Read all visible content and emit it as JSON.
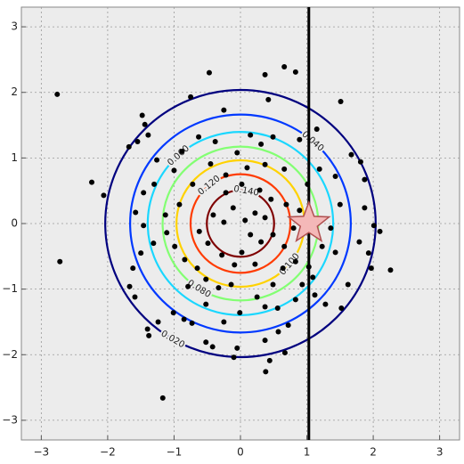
{
  "chart_data": {
    "type": "scatter",
    "x": [
      -2.76,
      -2.72,
      -2.24,
      -2.06,
      -1.17,
      2.26,
      1.51,
      -0.47,
      0.37,
      0.66,
      0.83,
      -0.75,
      -1.48,
      -1.44,
      -1.55,
      -1.68,
      -1.39,
      -0.25,
      0.42,
      0.89,
      1.15,
      1.67,
      1.81,
      1.87,
      1.87,
      2.01,
      2.1,
      1.79,
      1.93,
      1.97,
      1.62,
      1.52,
      1.28,
      1.09,
      1.12,
      0.93,
      1.03,
      0.83,
      0.64,
      0.49,
      0.25,
      0.37,
      0.72,
      0.57,
      0.37,
      0.67,
      0.44,
      0.38,
      -0.05,
      -0.1,
      -0.42,
      -0.52,
      -0.73,
      -0.85,
      -1.01,
      -1.24,
      -1.4,
      -1.38,
      -1.59,
      -1.67,
      -1.62,
      -1.5,
      -1.31,
      -1.46,
      -1.58,
      -1.46,
      -1.3,
      -1.26,
      -1.0,
      -0.88,
      -0.63,
      -0.38,
      -0.05,
      0.15,
      0.31,
      0.49,
      0.66,
      0.37,
      0.1,
      -0.22,
      -0.45,
      -0.72,
      -0.92,
      -1.13,
      -1.11,
      -0.99,
      -0.84,
      -0.65,
      -0.52,
      -0.33,
      -0.14,
      -0.09,
      -0.28,
      -0.49,
      -0.62,
      -0.41,
      -0.25,
      -0.11,
      0.07,
      0.22,
      0.37,
      0.46,
      0.29,
      0.02,
      -0.22,
      0.15,
      0.31,
      0.02,
      0.22,
      0.49,
      0.66,
      0.8,
      0.89,
      0.69,
      1.01,
      1.19,
      1.43,
      1.5,
      1.36,
      1.23,
      1.43,
      -0.79,
      -0.01,
      -0.25,
      -0.52,
      0.56,
      0.83
    ],
    "y": [
      1.97,
      -0.58,
      0.63,
      0.43,
      -2.66,
      -0.71,
      1.86,
      2.3,
      2.27,
      2.39,
      2.31,
      1.93,
      1.65,
      1.51,
      1.25,
      1.17,
      1.35,
      1.73,
      1.89,
      1.28,
      1.44,
      1.05,
      0.94,
      0.67,
      0.24,
      -0.03,
      -0.12,
      -0.28,
      -0.45,
      -0.68,
      -0.93,
      -1.29,
      -1.23,
      -0.82,
      -1.09,
      -0.93,
      -0.66,
      -0.58,
      -0.68,
      -0.93,
      -1.12,
      -1.27,
      -1.55,
      -1.65,
      -1.78,
      -1.97,
      -2.09,
      -2.26,
      -1.9,
      -2.04,
      -1.88,
      -1.81,
      -1.52,
      -1.46,
      -1.36,
      -1.5,
      -1.61,
      -1.71,
      -1.12,
      -0.96,
      -0.68,
      -0.45,
      -0.3,
      -0.03,
      0.17,
      0.47,
      0.6,
      0.97,
      0.81,
      1.1,
      1.32,
      1.25,
      1.08,
      1.35,
      1.21,
      1.32,
      0.83,
      0.9,
      0.85,
      0.74,
      0.91,
      0.6,
      0.29,
      0.13,
      -0.14,
      -0.35,
      -0.55,
      -0.68,
      -0.85,
      -0.98,
      -0.93,
      -0.63,
      -0.48,
      -0.3,
      -0.12,
      0.13,
      0.02,
      0.24,
      0.05,
      0.16,
      0.09,
      0.37,
      0.51,
      0.6,
      0.47,
      -0.17,
      -0.28,
      -0.44,
      -0.62,
      -0.17,
      -0.35,
      -0.07,
      0.2,
      0.29,
      0.6,
      0.83,
      0.72,
      0.29,
      -0.07,
      -0.35,
      -0.44,
      -0.96,
      -1.36,
      -1.5,
      -1.23,
      -1.29,
      -1.16
    ],
    "point_color": "#000000",
    "contours": {
      "levels": [
        0.02,
        0.04,
        0.06,
        0.08,
        0.1,
        0.12,
        0.14
      ],
      "value_labels": [
        "0.020",
        "0.040",
        "0.060",
        "0.080",
        "0.100",
        "0.120",
        "0.140"
      ],
      "colors": [
        "#00007f",
        "#0039ff",
        "#1ad7ff",
        "#83ff73",
        "#ffd200",
        "#ff3b00",
        "#7f0000"
      ]
    },
    "vline": {
      "x": 1.03,
      "color": "#000000"
    },
    "marker": {
      "x": 1.03,
      "y": 0.0,
      "color": "#f4b8b8",
      "edge": "#b05050"
    },
    "xlim": [
      -3.3,
      3.3
    ],
    "ylim": [
      -3.3,
      3.3
    ],
    "xticks": [
      {
        "value": -3,
        "label": "−3"
      },
      {
        "value": -2,
        "label": "−2"
      },
      {
        "value": -1,
        "label": "−1"
      },
      0,
      1,
      2,
      3
    ],
    "yticks": [
      {
        "value": -3,
        "label": "−3"
      },
      {
        "value": -2,
        "label": "−2"
      },
      {
        "value": -1,
        "label": "−1"
      },
      0,
      1,
      2,
      3
    ],
    "grid": true
  }
}
